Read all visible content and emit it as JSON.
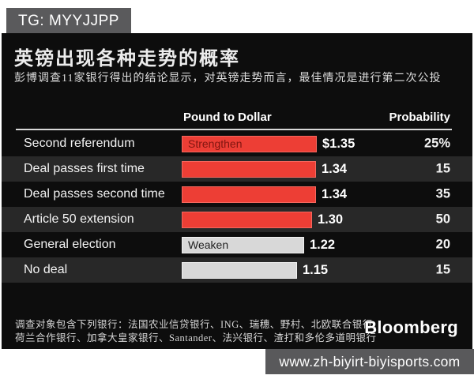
{
  "badge": {
    "label": "TG: MYYJJPP"
  },
  "header": {
    "title": "英镑出现各种走势的概率",
    "subtitle": "彭博调查11家银行得出的结论显示，对英镑走势而言，最佳情况是进行第二次公投"
  },
  "table": {
    "col_pound": "Pound to Dollar",
    "col_probability": "Probability"
  },
  "chart_data": {
    "type": "bar",
    "orientation": "horizontal",
    "title": "英镑出现各种走势的概率",
    "categories": [
      "Second referendum",
      "Deal passes first time",
      "Deal passes second time",
      "Article 50 extension",
      "General election",
      "No deal"
    ],
    "series": [
      {
        "name": "Pound to Dollar",
        "values": [
          1.35,
          1.34,
          1.34,
          1.3,
          1.22,
          1.15
        ],
        "labels": [
          "$1.35",
          "1.34",
          "1.34",
          "1.30",
          "1.22",
          "1.15"
        ]
      },
      {
        "name": "Probability",
        "values": [
          25,
          15,
          35,
          50,
          20,
          15
        ],
        "labels": [
          "25%",
          "15",
          "35",
          "50",
          "20",
          "15"
        ]
      }
    ],
    "bar_direction": [
      "strengthen",
      "strengthen",
      "strengthen",
      "strengthen",
      "weaken",
      "weaken"
    ],
    "bar_inline_labels": [
      "Strengthen",
      "",
      "",
      "",
      "Weaken",
      ""
    ],
    "legend": {
      "strengthen_label": "Strengthen",
      "weaken_label": "Weaken"
    },
    "colors": {
      "strengthen": "#ed3e35",
      "weaken": "#d8d8d8",
      "background": "#0d0d0d",
      "alt_row": "#282828"
    },
    "value_axis_range": [
      0,
      1.35
    ],
    "grid": false
  },
  "footer": {
    "note_line1": "调查对象包含下列银行：法国农业信贷银行、ING、瑞穗、野村、北欧联合银行、",
    "note_line2": "荷兰合作银行、加拿大皇家银行、Santander、法兴银行、渣打和多伦多道明银行",
    "source": "Bloomberg"
  },
  "watermark": {
    "url_text": "www.zh-biyirt-biyisports.com"
  }
}
